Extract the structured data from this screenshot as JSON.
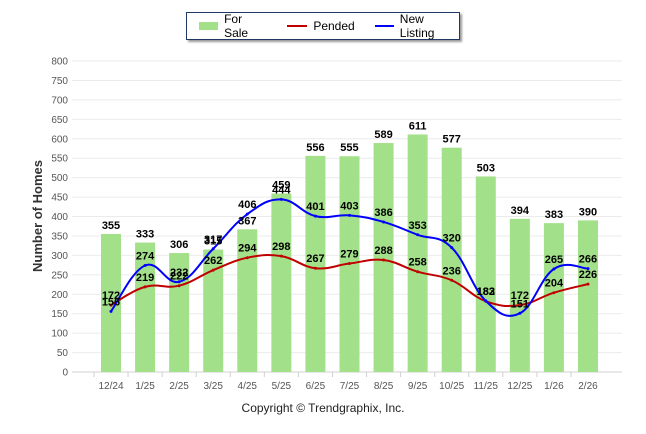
{
  "chart_data": {
    "type": "bar",
    "title": "",
    "xlabel": "",
    "ylabel": "Number of Homes",
    "ylim": [
      0,
      800
    ],
    "yticks": [
      0,
      50,
      100,
      150,
      200,
      250,
      300,
      350,
      400,
      450,
      500,
      550,
      600,
      650,
      700,
      750,
      800
    ],
    "grid": true,
    "legend_position": "top-center",
    "categories": [
      "12/24",
      "1/25",
      "2/25",
      "3/25",
      "4/25",
      "5/25",
      "6/25",
      "7/25",
      "8/25",
      "9/25",
      "10/25",
      "11/25",
      "12/25",
      "1/26",
      "2/26"
    ],
    "series": [
      {
        "name": "For Sale",
        "type": "bar",
        "color": "#a3e08a",
        "values": [
          355,
          333,
          306,
          315,
          367,
          459,
          556,
          555,
          589,
          611,
          577,
          503,
          394,
          383,
          390
        ]
      },
      {
        "name": "Pended",
        "type": "line",
        "color": "#c00000",
        "values": [
          172,
          219,
          222,
          262,
          294,
          298,
          267,
          279,
          288,
          258,
          236,
          182,
          172,
          204,
          226
        ]
      },
      {
        "name": "New Listing",
        "type": "line",
        "color": "#0000ff",
        "values": [
          156,
          274,
          232,
          317,
          406,
          444,
          401,
          403,
          386,
          353,
          320,
          183,
          151,
          265,
          266
        ]
      }
    ]
  },
  "footer": {
    "copyright": "Copyright © Trendgraphix, Inc."
  }
}
